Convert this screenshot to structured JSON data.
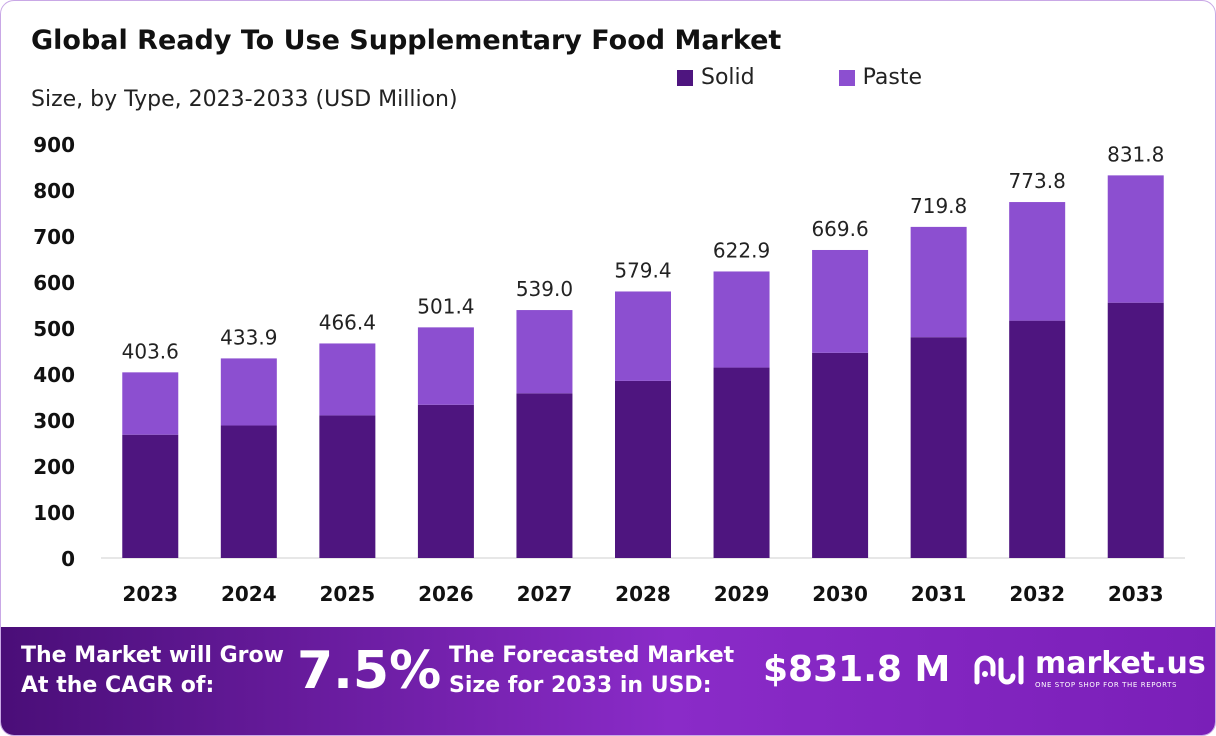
{
  "header": {
    "title": "Global Ready To Use Supplementary  Food Market",
    "subtitle": "Size, by Type, 2023-2033 (USD Million)"
  },
  "legend": [
    {
      "label": "Solid",
      "color": "#4e157f"
    },
    {
      "label": "Paste",
      "color": "#8c4fd0"
    }
  ],
  "chart_data": {
    "type": "bar",
    "stacked": true,
    "title": "Global Ready To Use Supplementary  Food Market",
    "subtitle": "Size, by Type, 2023-2033 (USD Million)",
    "categories": [
      "2023",
      "2024",
      "2025",
      "2026",
      "2027",
      "2028",
      "2029",
      "2030",
      "2031",
      "2032",
      "2033"
    ],
    "series": [
      {
        "name": "Solid",
        "color": "#4e157f",
        "values": [
          268,
          288,
          310,
          333,
          358,
          385,
          414,
          446,
          480,
          516,
          555
        ]
      },
      {
        "name": "Paste",
        "color": "#8c4fd0",
        "values": [
          135.6,
          145.9,
          156.4,
          168.4,
          181.0,
          194.4,
          208.9,
          223.6,
          239.8,
          257.8,
          276.8
        ]
      }
    ],
    "totals": [
      403.6,
      433.9,
      466.4,
      501.4,
      539.0,
      579.4,
      622.9,
      669.6,
      719.8,
      773.8,
      831.8
    ],
    "total_labels": [
      "403.6",
      "433.9",
      "466.4",
      "501.4",
      "539.0",
      "579.4",
      "622.9",
      "669.6",
      "719.8",
      "773.8",
      "831.8"
    ],
    "yticks": [
      "0",
      "100",
      "200",
      "300",
      "400",
      "500",
      "600",
      "700",
      "800",
      "900"
    ],
    "ylim": [
      0,
      900
    ],
    "grid": false,
    "legend_position": "top-right"
  },
  "footer": {
    "cagr_text_1": "The Market will Grow",
    "cagr_text_2": "At the CAGR of:",
    "cagr_value": "7.5%",
    "forecast_text_1": "The Forecasted Market",
    "forecast_text_2": "Size for 2033 in USD:",
    "forecast_value": "$831.8 M",
    "brand_name": "market.us",
    "brand_tagline": "ONE STOP SHOP FOR THE REPORTS",
    "brand_icon": "market-us-logo-icon"
  }
}
